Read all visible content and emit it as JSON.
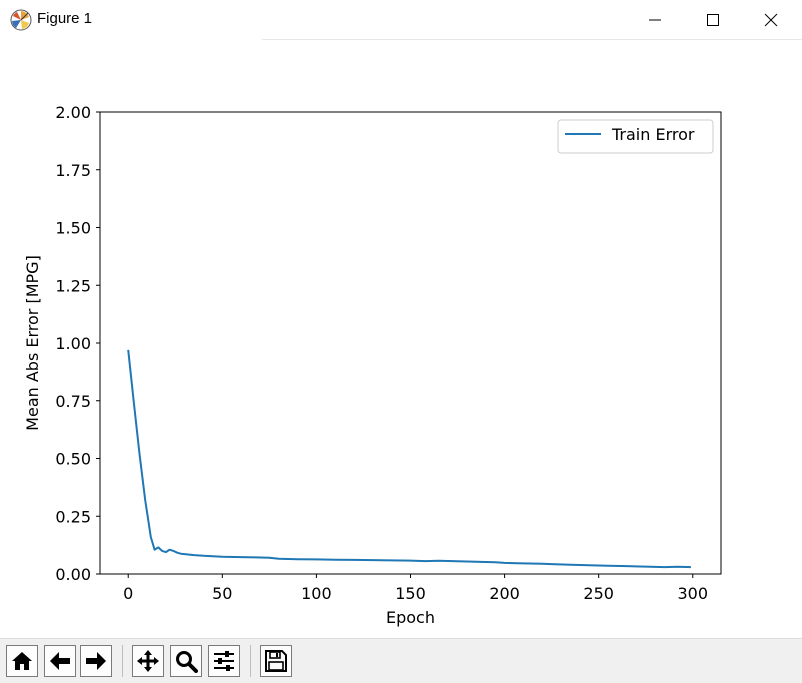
{
  "window": {
    "title": "Figure 1"
  },
  "toolbar": {
    "items": [
      {
        "name": "home-button",
        "icon": "home-icon"
      },
      {
        "name": "back-button",
        "icon": "arrow-left-icon"
      },
      {
        "name": "forward-button",
        "icon": "arrow-right-icon"
      },
      {
        "name": "pan-button",
        "icon": "move-icon"
      },
      {
        "name": "zoom-button",
        "icon": "magnifier-icon"
      },
      {
        "name": "configure-subplots-button",
        "icon": "sliders-icon"
      },
      {
        "name": "save-button",
        "icon": "floppy-disk-icon"
      }
    ]
  },
  "chart_data": {
    "type": "line",
    "xlabel": "Epoch",
    "ylabel": "Mean Abs Error [MPG]",
    "xlim": [
      -15,
      315
    ],
    "ylim": [
      0,
      2
    ],
    "xticks": [
      "0",
      "50",
      "100",
      "150",
      "200",
      "250",
      "300"
    ],
    "yticks": [
      "0.00",
      "0.25",
      "0.50",
      "0.75",
      "1.00",
      "1.25",
      "1.50",
      "1.75",
      "2.00"
    ],
    "grid": false,
    "legend": "top-right",
    "series": [
      {
        "name": "Train Error",
        "color": "#1f77b4",
        "x": [
          0,
          3,
          6,
          9,
          12,
          14,
          16,
          18,
          20,
          22,
          24,
          26,
          28,
          30,
          35,
          40,
          50,
          60,
          68,
          75,
          80,
          90,
          100,
          110,
          120,
          130,
          140,
          150,
          158,
          165,
          175,
          185,
          195,
          200,
          210,
          220,
          225,
          235,
          245,
          255,
          265,
          275,
          285,
          292,
          299
        ],
        "values": [
          0.97,
          0.74,
          0.52,
          0.32,
          0.16,
          0.105,
          0.115,
          0.1,
          0.095,
          0.105,
          0.1,
          0.092,
          0.088,
          0.086,
          0.082,
          0.079,
          0.075,
          0.073,
          0.072,
          0.07,
          0.066,
          0.064,
          0.063,
          0.062,
          0.061,
          0.06,
          0.059,
          0.058,
          0.056,
          0.057,
          0.055,
          0.053,
          0.051,
          0.048,
          0.046,
          0.044,
          0.043,
          0.04,
          0.038,
          0.036,
          0.034,
          0.032,
          0.03,
          0.031,
          0.03
        ]
      }
    ]
  }
}
